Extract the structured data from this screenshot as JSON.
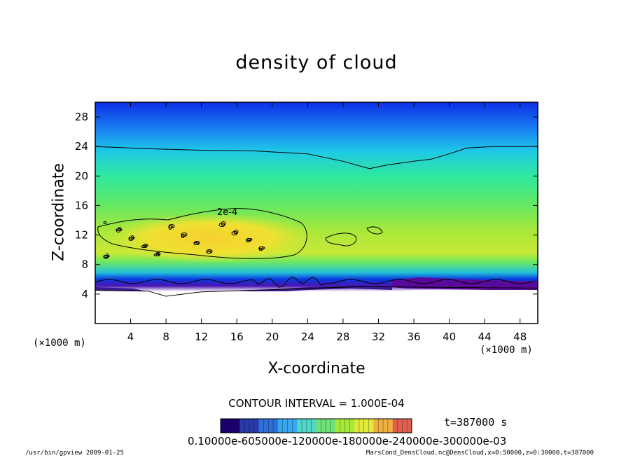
{
  "chart_data": {
    "type": "heatmap",
    "title": "density of cloud",
    "xlabel": "X-coordinate",
    "ylabel": "Z-coordinate",
    "x_unit_label": "(×1000 m)",
    "y_unit_label": "(×1000 m)",
    "xlim": [
      0,
      50
    ],
    "ylim": [
      0,
      30
    ],
    "x_ticks": [
      4,
      8,
      12,
      16,
      20,
      24,
      28,
      32,
      36,
      40,
      44,
      48
    ],
    "y_ticks": [
      4,
      8,
      12,
      16,
      20,
      24,
      28
    ],
    "contour_interval_text": "CONTOUR INTERVAL = 1.000E-04",
    "contour_label": "2e-4",
    "time_text": "t=387000 s",
    "colorbar_labels_text": "0.10000e-605000e-120000e-180000e-240000e-300000e-03",
    "colorbar_colors": [
      "#1a006e",
      "#2a3aa8",
      "#2f6fd8",
      "#37a8f0",
      "#4fd6c8",
      "#6fe07a",
      "#a6e83a",
      "#e0e83a",
      "#f0b040",
      "#e06050"
    ],
    "field_description_colors": {
      "top": "#0d2fe6",
      "upper": "#1ec8e8",
      "middle": "#2ee89a",
      "lower": "#8ee83c",
      "core": "#f2dc30",
      "base": "#0a2ad0",
      "bottom_edge": "#5a0a9a"
    },
    "upper_contour_z": [
      [
        0,
        24.0
      ],
      [
        6,
        23.7
      ],
      [
        12,
        23.5
      ],
      [
        18,
        23.4
      ],
      [
        24,
        23.0
      ],
      [
        28,
        22.0
      ],
      [
        31,
        21.0
      ],
      [
        33,
        21.5
      ],
      [
        36,
        22.0
      ],
      [
        38,
        22.3
      ],
      [
        40,
        23.0
      ],
      [
        42,
        23.8
      ],
      [
        45,
        24.0
      ],
      [
        50,
        24.0
      ]
    ],
    "cloud_base_z": [
      [
        0,
        4.5
      ],
      [
        6,
        4.4
      ],
      [
        8,
        3.7
      ],
      [
        12,
        4.3
      ],
      [
        20,
        4.6
      ],
      [
        30,
        5.0
      ],
      [
        40,
        4.9
      ],
      [
        50,
        4.8
      ]
    ]
  },
  "footer_left": "/usr/bin/gpview   2009-01-25",
  "footer_right": "MarsCond_DensCloud.nc@DensCloud,x=0:50000,z=0:30000,t=387000"
}
